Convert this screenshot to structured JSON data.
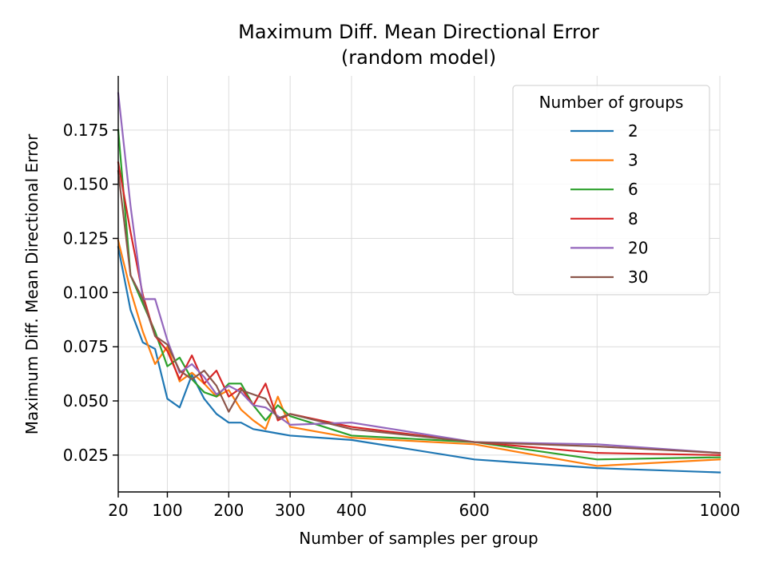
{
  "chart_data": {
    "type": "line",
    "title": "Maximum Diff. Mean Directional Error",
    "subtitle": "(random model)",
    "xlabel": "Number of samples per group",
    "ylabel": "Maximum Diff. Mean Directional Error",
    "xlim": [
      20,
      1000
    ],
    "ylim": [
      0.008,
      0.2
    ],
    "x_ticks": [
      20,
      100,
      200,
      300,
      400,
      600,
      800,
      1000
    ],
    "y_ticks": [
      0.025,
      0.05,
      0.075,
      0.1,
      0.125,
      0.15,
      0.175
    ],
    "y_tick_labels": [
      "0.025",
      "0.050",
      "0.075",
      "0.100",
      "0.125",
      "0.150",
      "0.175"
    ],
    "grid": true,
    "legend_title": "Number of groups",
    "legend_position": "top-right",
    "x": [
      20,
      40,
      60,
      80,
      100,
      120,
      140,
      160,
      180,
      200,
      220,
      240,
      260,
      280,
      300,
      400,
      600,
      800,
      1000
    ],
    "series": [
      {
        "name": "2",
        "color": "#1f77b4",
        "values": [
          0.121,
          0.092,
          0.077,
          0.074,
          0.051,
          0.047,
          0.062,
          0.051,
          0.044,
          0.04,
          0.04,
          0.037,
          0.036,
          0.035,
          0.034,
          0.032,
          0.023,
          0.019,
          0.017
        ]
      },
      {
        "name": "3",
        "color": "#ff7f0e",
        "values": [
          0.124,
          0.101,
          0.082,
          0.067,
          0.075,
          0.059,
          0.063,
          0.058,
          0.052,
          0.055,
          0.046,
          0.041,
          0.037,
          0.052,
          0.038,
          0.033,
          0.03,
          0.02,
          0.023
        ]
      },
      {
        "name": "6",
        "color": "#2ca02c",
        "values": [
          0.175,
          0.108,
          0.095,
          0.082,
          0.066,
          0.07,
          0.06,
          0.054,
          0.052,
          0.058,
          0.058,
          0.048,
          0.041,
          0.048,
          0.043,
          0.034,
          0.031,
          0.023,
          0.024
        ]
      },
      {
        "name": "8",
        "color": "#d62728",
        "values": [
          0.16,
          0.128,
          0.099,
          0.08,
          0.073,
          0.06,
          0.071,
          0.058,
          0.064,
          0.052,
          0.056,
          0.048,
          0.058,
          0.041,
          0.044,
          0.038,
          0.031,
          0.026,
          0.025
        ]
      },
      {
        "name": "20",
        "color": "#9467bd",
        "values": [
          0.192,
          0.14,
          0.097,
          0.097,
          0.078,
          0.063,
          0.067,
          0.061,
          0.053,
          0.057,
          0.054,
          0.048,
          0.047,
          0.043,
          0.039,
          0.04,
          0.031,
          0.03,
          0.026
        ]
      },
      {
        "name": "30",
        "color": "#8c564b",
        "values": [
          0.156,
          0.108,
          0.097,
          0.08,
          0.076,
          0.064,
          0.06,
          0.064,
          0.057,
          0.045,
          0.055,
          0.053,
          0.051,
          0.042,
          0.044,
          0.037,
          0.031,
          0.029,
          0.026
        ]
      }
    ]
  }
}
